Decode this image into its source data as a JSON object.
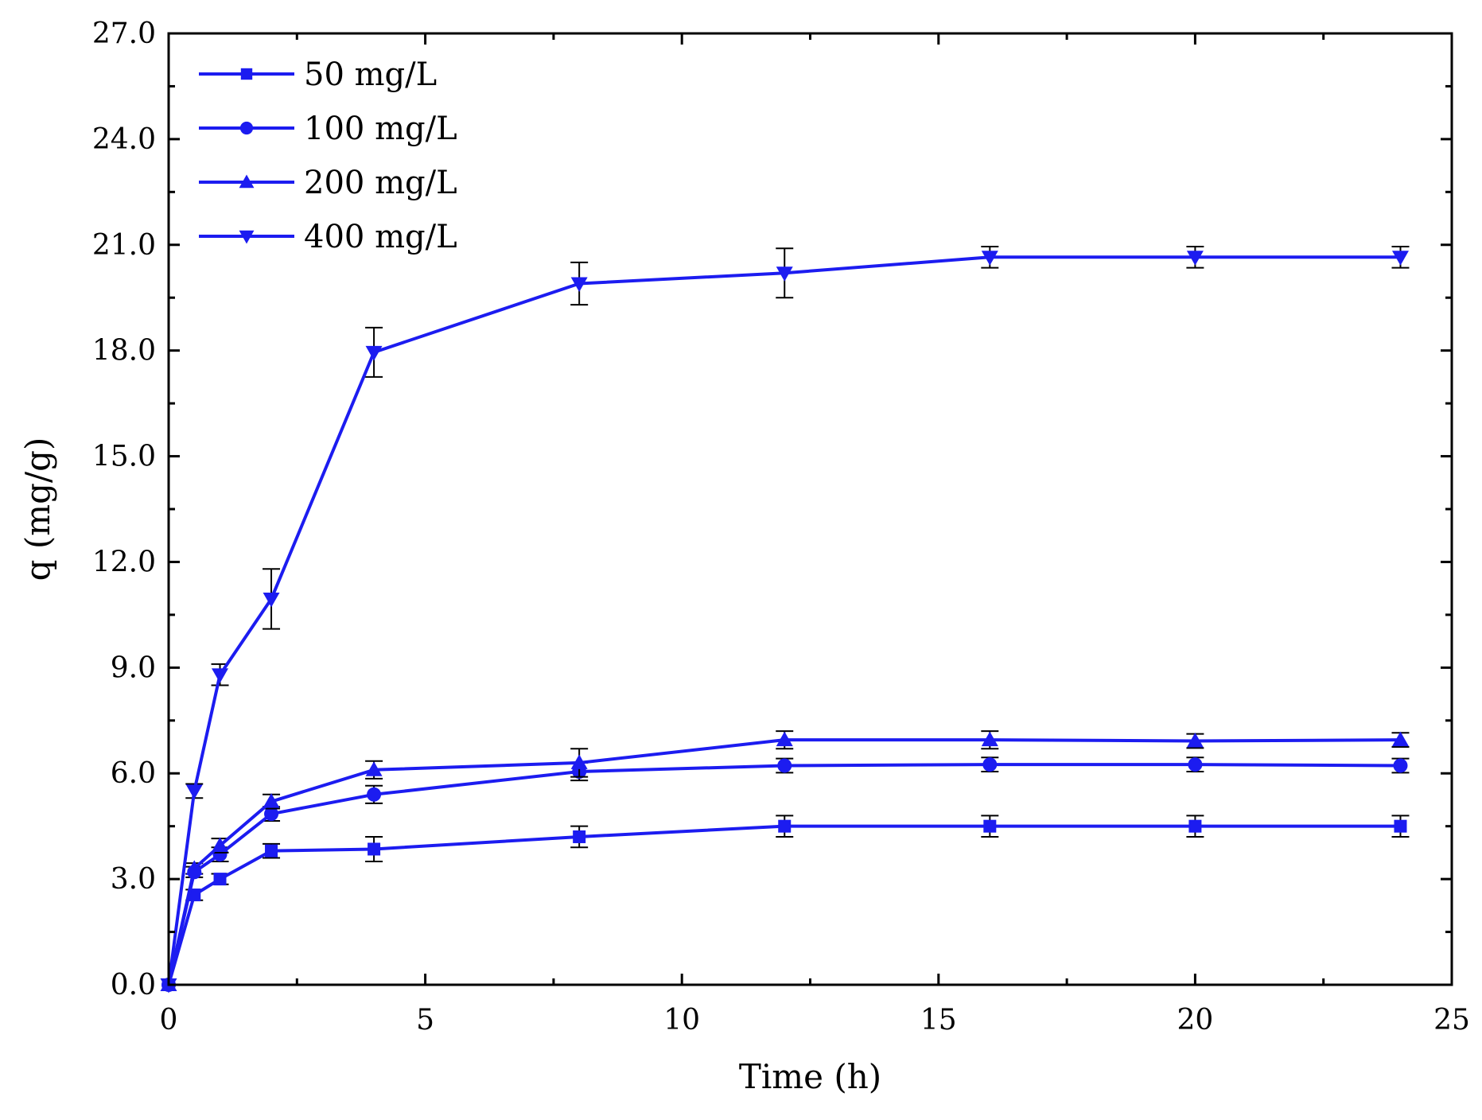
{
  "chart_data": {
    "type": "line",
    "title": "",
    "xlabel": "Time (h)",
    "ylabel": "q (mg/g)",
    "xlim": [
      0,
      25
    ],
    "ylim": [
      0,
      27
    ],
    "xticks": [
      "0",
      "5",
      "10",
      "15",
      "20",
      "25"
    ],
    "yticks": [
      "0.0",
      "3.0",
      "6.0",
      "9.0",
      "12.0",
      "15.0",
      "18.0",
      "21.0",
      "24.0",
      "27.0"
    ],
    "grid": false,
    "legend_position": "top-left",
    "series_color": "#1c1cf0",
    "x": [
      0,
      0.5,
      1,
      2,
      4,
      8,
      12,
      16,
      20,
      24
    ],
    "series": [
      {
        "name": "50 mg/L",
        "marker": "square",
        "values": [
          0,
          2.55,
          3.0,
          3.8,
          3.85,
          4.2,
          4.5,
          4.5,
          4.5,
          4.5
        ],
        "errors": [
          0,
          0.15,
          0.15,
          0.2,
          0.35,
          0.3,
          0.3,
          0.3,
          0.3,
          0.3
        ]
      },
      {
        "name": "100 mg/L",
        "marker": "circle",
        "values": [
          0,
          3.2,
          3.7,
          4.85,
          5.4,
          6.05,
          6.22,
          6.25,
          6.25,
          6.22
        ],
        "errors": [
          0,
          0.15,
          0.2,
          0.2,
          0.25,
          0.25,
          0.2,
          0.2,
          0.2,
          0.2
        ]
      },
      {
        "name": "200 mg/L",
        "marker": "triangle-up",
        "values": [
          0,
          3.3,
          3.95,
          5.2,
          6.1,
          6.3,
          6.95,
          6.95,
          6.92,
          6.95
        ],
        "errors": [
          0,
          0.15,
          0.2,
          0.2,
          0.25,
          0.4,
          0.25,
          0.25,
          0.2,
          0.2
        ]
      },
      {
        "name": "400 mg/L",
        "marker": "triangle-down",
        "values": [
          0,
          5.5,
          8.8,
          10.95,
          17.95,
          19.9,
          20.2,
          20.65,
          20.65,
          20.65
        ],
        "errors": [
          0,
          0.2,
          0.3,
          0.85,
          0.7,
          0.6,
          0.7,
          0.3,
          0.3,
          0.3
        ]
      }
    ]
  }
}
